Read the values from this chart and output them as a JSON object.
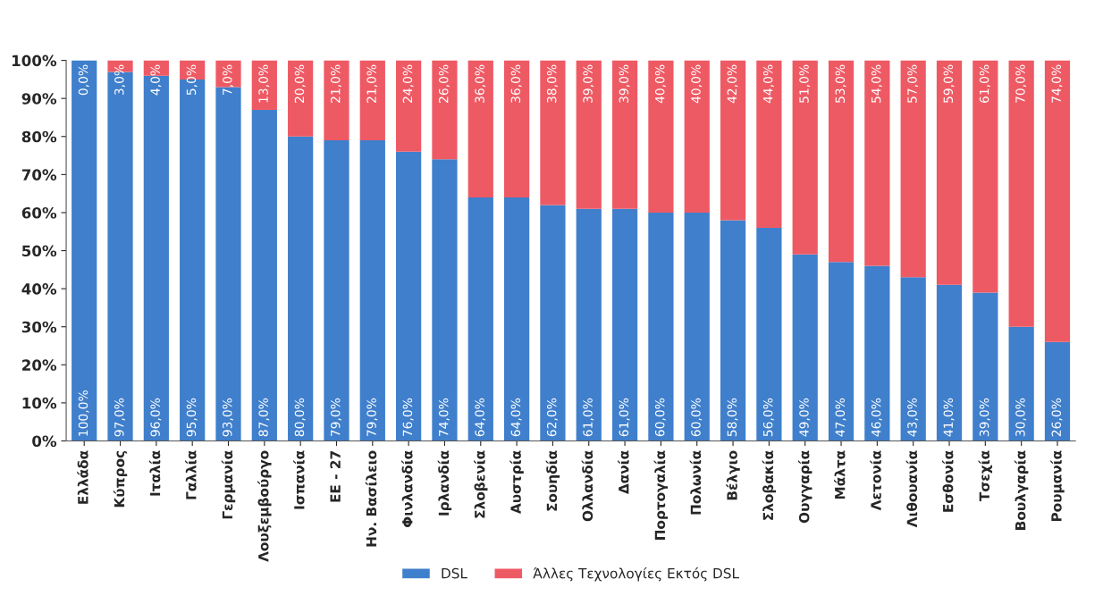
{
  "chart_data": {
    "type": "bar",
    "stacked": true,
    "legend": "bottom",
    "categories": [
      "Ελλάδα",
      "Κύπρος",
      "Ιταλία",
      "Γαλλία",
      "Γερμανία",
      "Λουξεμβούργο",
      "Ισπανία",
      "ΕΕ - 27",
      "Ην. Βασίλειο",
      "Φινλανδία",
      "Ιρλανδία",
      "Σλοβενία",
      "Αυστρία",
      "Σουηδία",
      "Ολλανδία",
      "Δανία",
      "Πορτογαλία",
      "Πολωνία",
      "Βέλγιο",
      "Σλοβακία",
      "Ουγγαρία",
      "Μάλτα",
      "Λετονία",
      "Λιθουανία",
      "Εσθονία",
      "Τσεχία",
      "Βουλγαρία",
      "Ρουμανία"
    ],
    "ylim": [
      0,
      100
    ],
    "yticks": [
      {
        "value": 0,
        "label": "0%"
      },
      {
        "value": 10,
        "label": "10%"
      },
      {
        "value": 20,
        "label": "20%"
      },
      {
        "value": 30,
        "label": "30%"
      },
      {
        "value": 40,
        "label": "40%"
      },
      {
        "value": 50,
        "label": "50%"
      },
      {
        "value": 60,
        "label": "60%"
      },
      {
        "value": 70,
        "label": "70%"
      },
      {
        "value": 80,
        "label": "80%"
      },
      {
        "value": 90,
        "label": "90%"
      },
      {
        "value": 100,
        "label": "100%"
      }
    ],
    "series": [
      {
        "name": "DSL",
        "color": "#3f7fcc",
        "values": [
          100,
          97,
          96,
          95,
          93,
          87,
          80,
          79,
          79,
          76,
          74,
          64,
          64,
          62,
          61,
          61,
          60,
          60,
          58,
          56,
          49,
          47,
          46,
          43,
          41,
          39,
          30,
          26
        ],
        "value_labels": [
          "100,0%",
          "97,0%",
          "96,0%",
          "95,0%",
          "93,0%",
          "87,0%",
          "80,0%",
          "79,0%",
          "79,0%",
          "76,0%",
          "74,0%",
          "64,0%",
          "64,0%",
          "62,0%",
          "61,0%",
          "61,0%",
          "60,0%",
          "60,0%",
          "58,0%",
          "56,0%",
          "49,0%",
          "47,0%",
          "46,0%",
          "43,0%",
          "41,0%",
          "39,0%",
          "30,0%",
          "26,0%"
        ]
      },
      {
        "name": "Άλλες Τεχνολογίες Εκτός DSL",
        "color": "#ee5a64",
        "values": [
          0,
          3,
          4,
          5,
          7,
          13,
          20,
          21,
          21,
          24,
          26,
          36,
          36,
          38,
          39,
          39,
          40,
          40,
          42,
          44,
          51,
          53,
          54,
          57,
          59,
          61,
          70,
          74
        ],
        "value_labels": [
          "0,0%",
          "3,0%",
          "4,0%",
          "5,0%",
          "7,0%",
          "13,0%",
          "20,0%",
          "21,0%",
          "21,0%",
          "24,0%",
          "26,0%",
          "36,0%",
          "36,0%",
          "38,0%",
          "39,0%",
          "39,0%",
          "40,0%",
          "40,0%",
          "42,0%",
          "44,0%",
          "51,0%",
          "53,0%",
          "54,0%",
          "57,0%",
          "59,0%",
          "61,0%",
          "70,0%",
          "74,0%"
        ]
      }
    ]
  }
}
